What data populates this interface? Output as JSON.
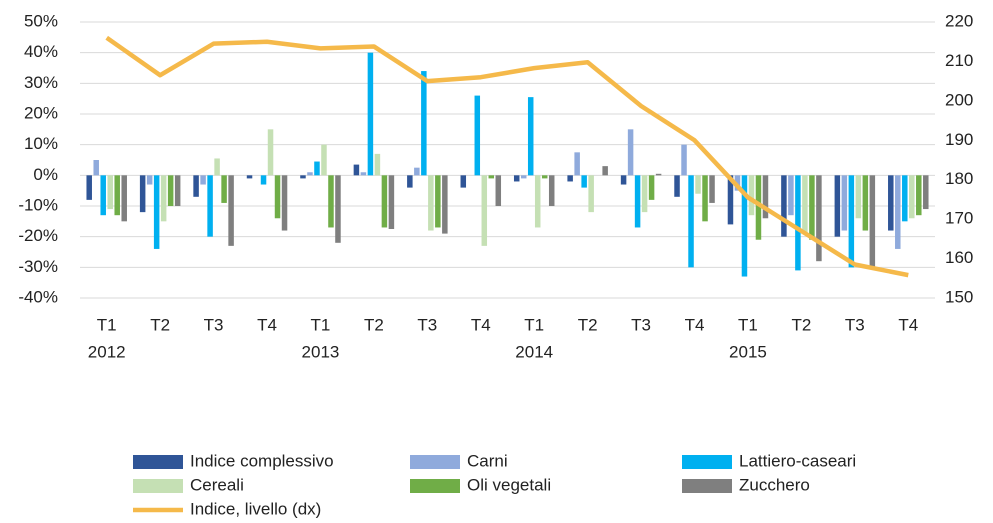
{
  "chart_data": {
    "type": "bar",
    "categories": [
      "T1",
      "T2",
      "T3",
      "T4",
      "T1",
      "T2",
      "T3",
      "T4",
      "T1",
      "T2",
      "T3",
      "T4",
      "T1",
      "T2",
      "T3",
      "T4"
    ],
    "year_labels": [
      "2012",
      "2013",
      "2014",
      "2015"
    ],
    "ylim": [
      -40,
      50
    ],
    "yticks": [
      {
        "value": -40,
        "label": "-40%"
      },
      {
        "value": -30,
        "label": "-30%"
      },
      {
        "value": -20,
        "label": "-20%"
      },
      {
        "value": -10,
        "label": "-10%"
      },
      {
        "value": 0,
        "label": "0%"
      },
      {
        "value": 10,
        "label": "10%"
      },
      {
        "value": 20,
        "label": "20%"
      },
      {
        "value": 30,
        "label": "30%"
      },
      {
        "value": 40,
        "label": "40%"
      },
      {
        "value": 50,
        "label": "50%"
      }
    ],
    "y2lim": [
      150,
      220
    ],
    "y2ticks": [
      150,
      160,
      170,
      180,
      190,
      200,
      210,
      220
    ],
    "grid": true,
    "series": [
      {
        "name": "Indice complessivo",
        "color": "#2f5597",
        "values": [
          -8,
          -12,
          -7,
          -1,
          -1,
          3.5,
          -4,
          -4,
          -2,
          -2,
          -3,
          -7,
          -16,
          -20,
          -20,
          -18
        ]
      },
      {
        "name": "Carni",
        "color": "#8faadc",
        "values": [
          5,
          -3,
          -3,
          0,
          1,
          1,
          2.5,
          0,
          -1,
          7.5,
          15,
          10,
          -5,
          -13,
          -18,
          -24
        ]
      },
      {
        "name": "Lattiero-caseari",
        "color": "#00b0f0",
        "values": [
          -13,
          -24,
          -20,
          -3,
          4.5,
          40,
          34,
          26,
          25.5,
          -4,
          -17,
          -30,
          -33,
          -31,
          -30,
          -15
        ]
      },
      {
        "name": "Cereali",
        "color": "#c5e0b4",
        "values": [
          -11,
          -15,
          5.5,
          15,
          10,
          7,
          -18,
          -23,
          -17,
          -12,
          -12,
          -6,
          -13,
          -19,
          -14,
          -14
        ]
      },
      {
        "name": "Oli vegetali",
        "color": "#70ad47",
        "values": [
          -13,
          -10,
          -9,
          -14,
          -17,
          -17,
          -17,
          -1,
          -1,
          0,
          -8,
          -15,
          -21,
          -21,
          -18,
          -13
        ]
      },
      {
        "name": "Zucchero",
        "color": "#7f7f7f",
        "values": [
          -15,
          -10,
          -23,
          -18,
          -22,
          -17.5,
          -19,
          -10,
          -10,
          3,
          0.5,
          -9,
          -14,
          -28,
          -30,
          -11
        ]
      },
      {
        "name": "Indice, livello (dx)",
        "color": "#f5b94a",
        "type": "line",
        "axis": "y2",
        "values": [
          216,
          206.5,
          214.5,
          215,
          213.3,
          213.8,
          205,
          206,
          208.3,
          209.8,
          198.7,
          190,
          175.5,
          167,
          158.5,
          155.8
        ]
      }
    ]
  }
}
